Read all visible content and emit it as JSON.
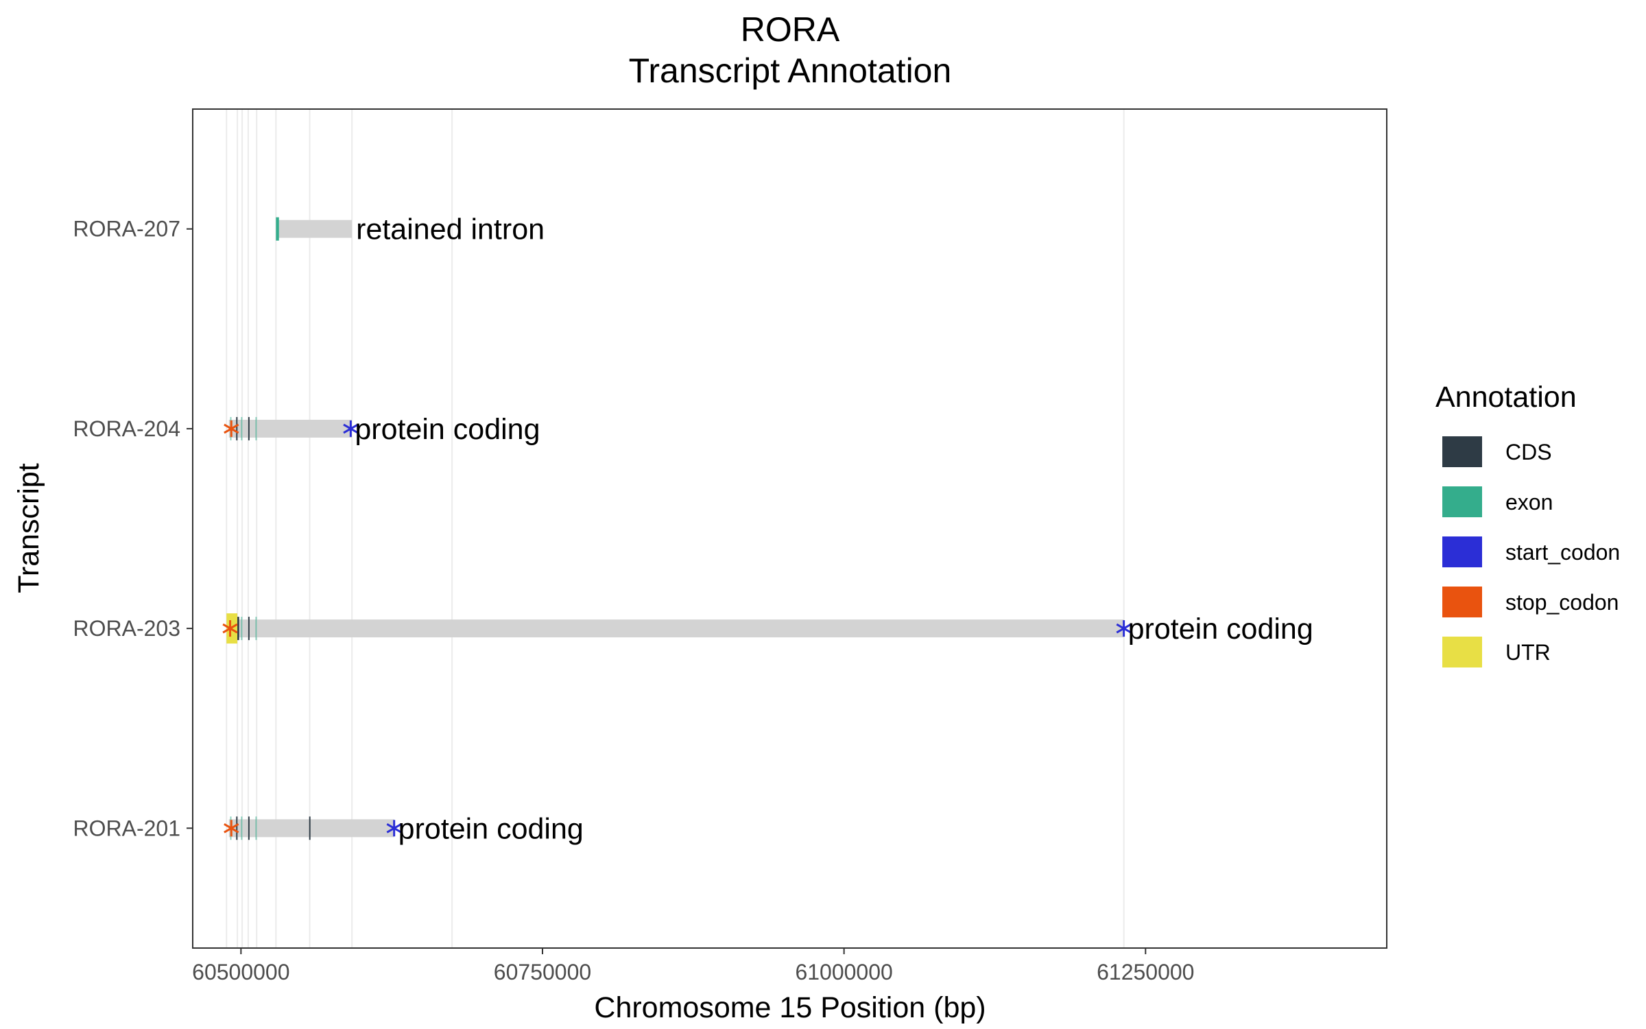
{
  "chart_data": {
    "type": "gene-transcript-track",
    "title": "RORA",
    "subtitle": "Transcript Annotation",
    "xlabel": "Chromosome 15 Position (bp)",
    "ylabel": "Transcript",
    "xlim": [
      60460000,
      61450000
    ],
    "x_ticks": [
      60500000,
      60750000,
      61000000,
      61250000
    ],
    "x_tick_labels": [
      "60500000",
      "60750000",
      "61000000",
      "61250000"
    ],
    "grid": true,
    "grid_lines_x": [
      60488000,
      60497000,
      60501000,
      60506000,
      60513000,
      60529000,
      60557000,
      60592000,
      60675000,
      61232000
    ],
    "legend_position": "right",
    "legend": {
      "title": "Annotation",
      "entries": [
        {
          "key": "CDS",
          "label": "CDS",
          "color": "#2e3b45"
        },
        {
          "key": "exon",
          "label": "exon",
          "color": "#34ad8c"
        },
        {
          "key": "start_codon",
          "label": "start_codon",
          "color": "#2b2ed6"
        },
        {
          "key": "stop_codon",
          "label": "stop_codon",
          "color": "#e9530f"
        },
        {
          "key": "UTR",
          "label": "UTR",
          "color": "#e8df45"
        }
      ]
    },
    "transcript_color": "#d3d3d3",
    "transcripts": [
      {
        "name": "RORA-207",
        "biotype": "retained intron",
        "start": 60530000,
        "end": 60592000,
        "features": [
          {
            "type": "exon",
            "start": 60529000,
            "end": 60531500
          }
        ],
        "stop_codon": null,
        "start_codon": null
      },
      {
        "name": "RORA-204",
        "biotype": "protein coding",
        "start": 60490000,
        "end": 60592000,
        "features": [
          {
            "type": "exon",
            "start": 60491000,
            "end": 60492000
          },
          {
            "type": "CDS",
            "start": 60496000,
            "end": 60497000
          },
          {
            "type": "exon",
            "start": 60500000,
            "end": 60501000
          },
          {
            "type": "CDS",
            "start": 60506000,
            "end": 60507000
          },
          {
            "type": "exon",
            "start": 60512000,
            "end": 60513000
          }
        ],
        "stop_codon": 60492000,
        "start_codon": 60591000
      },
      {
        "name": "RORA-203",
        "biotype": "protein coding",
        "start": 60489000,
        "end": 61232000,
        "features": [
          {
            "type": "UTR",
            "start": 60488000,
            "end": 60497000
          },
          {
            "type": "CDS",
            "start": 60497000,
            "end": 60498500
          },
          {
            "type": "exon",
            "start": 60500000,
            "end": 60501000
          },
          {
            "type": "CDS",
            "start": 60506000,
            "end": 60507000
          },
          {
            "type": "exon",
            "start": 60512000,
            "end": 60513000
          }
        ],
        "stop_codon": 60491000,
        "start_codon": 61232000
      },
      {
        "name": "RORA-201",
        "biotype": "protein coding",
        "start": 60490000,
        "end": 60627000,
        "features": [
          {
            "type": "exon",
            "start": 60491000,
            "end": 60492000
          },
          {
            "type": "CDS",
            "start": 60496000,
            "end": 60497000
          },
          {
            "type": "exon",
            "start": 60500000,
            "end": 60501000
          },
          {
            "type": "CDS",
            "start": 60506000,
            "end": 60507000
          },
          {
            "type": "exon",
            "start": 60512000,
            "end": 60513000
          },
          {
            "type": "CDS",
            "start": 60556500,
            "end": 60557500
          }
        ],
        "stop_codon": 60492000,
        "start_codon": 60627000
      }
    ],
    "transcript_order_bottom_to_top": [
      "RORA-201",
      "RORA-203",
      "RORA-204",
      "RORA-207"
    ]
  }
}
